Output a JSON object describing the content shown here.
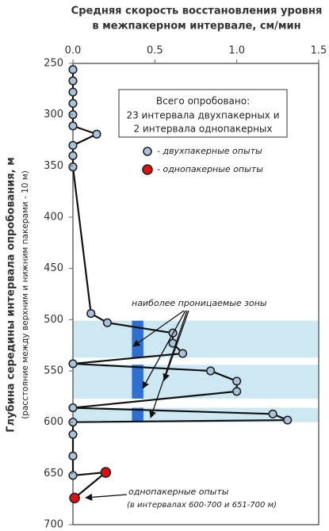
{
  "chart_data": {
    "type": "line",
    "title": [
      "Средняя скорость восстановления уровня",
      "в межпакерном интервале, см/мин"
    ],
    "y_label": [
      "Глубина середины интервала опробования, м",
      "(расстояние  между верхним и нижним пакерами - 10 м)"
    ],
    "xlim": [
      0,
      1.5
    ],
    "xticks": [
      {
        "value": 0,
        "label": "0.0"
      },
      0.5,
      {
        "value": 1,
        "label": "1.0"
      },
      1.5
    ],
    "ylim": [
      250,
      700
    ],
    "yticks": [
      250,
      300,
      350,
      400,
      450,
      500,
      550,
      600,
      650,
      700
    ],
    "y_inverted": true,
    "x_axis_position": "top",
    "series": [
      {
        "name": "- двухпакерные опыты",
        "color": "#a9c3dc",
        "x": [
          0,
          0,
          0,
          0,
          0,
          0,
          0.145,
          0,
          0,
          0,
          0.11,
          0.21,
          0.61,
          0.61,
          0.67,
          0,
          0.84,
          1.0,
          1.0,
          0,
          1.22,
          1.31,
          0,
          0,
          0,
          0
        ],
        "values": [
          256,
          267,
          278,
          289,
          300,
          311,
          319,
          330,
          340,
          351,
          494,
          503,
          513,
          523,
          533,
          543,
          550,
          560,
          570,
          586,
          592,
          598,
          600,
          612,
          633,
          652
        ]
      },
      {
        "name": "- однопакерные опыты",
        "color": "#e01010",
        "x": [
          0.2,
          0.01
        ],
        "values": [
          649,
          674
        ]
      }
    ],
    "zones": [
      {
        "from": 501,
        "to": 537,
        "xfrom": 0.36,
        "xto": 0.43
      },
      {
        "from": 544,
        "to": 577,
        "xfrom": 0.36,
        "xto": 0.43
      },
      {
        "from": 586,
        "to": 600,
        "xfrom": 0.36,
        "xto": 0.43
      }
    ],
    "annotations": {
      "summary": [
        "Всего опробовано:",
        "23 интервала двухпакерных и",
        "2 интервала однопакерных"
      ],
      "zones_label": "наиболее проницаемые зоны",
      "single_label": "однопакерные опыты",
      "single_note": "(в интервалах 600-700 и 651-700 м)"
    }
  }
}
